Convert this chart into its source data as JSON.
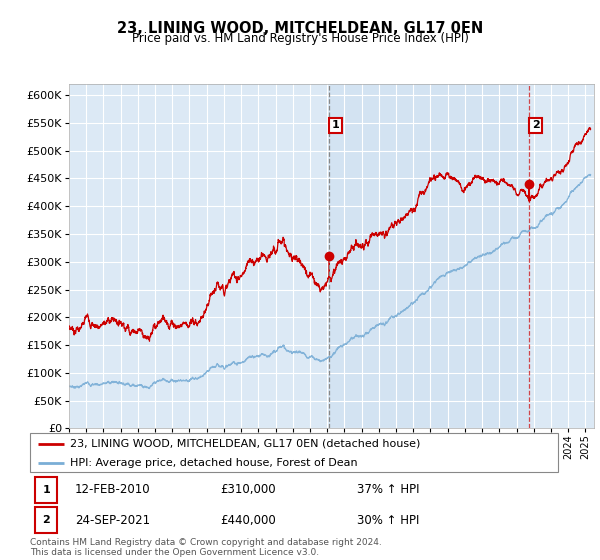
{
  "title": "23, LINING WOOD, MITCHELDEAN, GL17 0EN",
  "subtitle": "Price paid vs. HM Land Registry's House Price Index (HPI)",
  "xlim_start": 1995.0,
  "xlim_end": 2025.5,
  "ylim_min": 0,
  "ylim_max": 620000,
  "yticks": [
    0,
    50000,
    100000,
    150000,
    200000,
    250000,
    300000,
    350000,
    400000,
    450000,
    500000,
    550000,
    600000
  ],
  "bg_color": "#dce9f5",
  "shade_color": "#ccdff0",
  "grid_color": "#ffffff",
  "red_line_color": "#cc0000",
  "blue_line_color": "#7aaed6",
  "marker1_x": 2010.12,
  "marker1_y": 310000,
  "marker2_x": 2021.73,
  "marker2_y": 440000,
  "legend_line1": "23, LINING WOOD, MITCHELDEAN, GL17 0EN (detached house)",
  "legend_line2": "HPI: Average price, detached house, Forest of Dean",
  "annot1_date": "12-FEB-2010",
  "annot1_price": "£310,000",
  "annot1_hpi": "37% ↑ HPI",
  "annot2_date": "24-SEP-2021",
  "annot2_price": "£440,000",
  "annot2_hpi": "30% ↑ HPI",
  "footer": "Contains HM Land Registry data © Crown copyright and database right 2024.\nThis data is licensed under the Open Government Licence v3.0."
}
